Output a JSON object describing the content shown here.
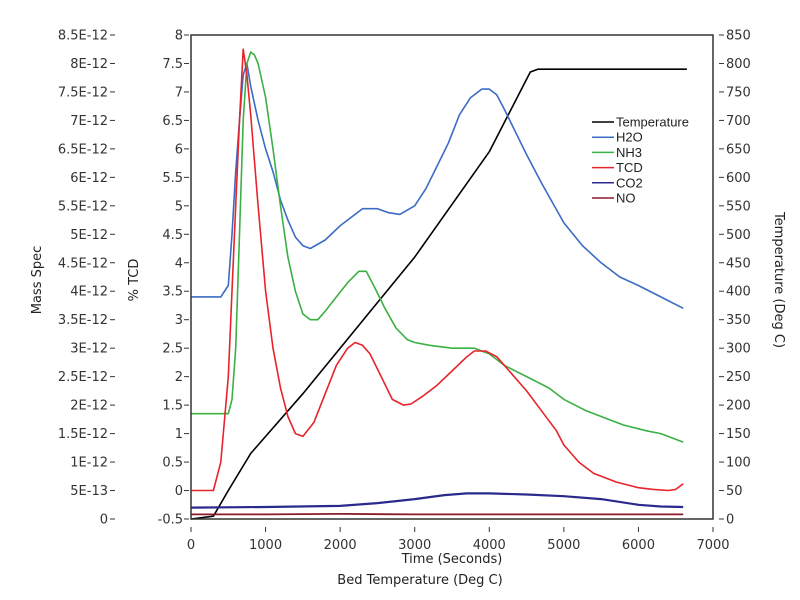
{
  "chart_data": {
    "type": "line",
    "xlabel": "Time (Seconds)",
    "xlabel2": "Bed Temperature (Deg C)",
    "ylabel_left_outer": "Mass Spec",
    "ylabel_left_inner": "% TCD",
    "ylabel_right": "Temperature (Deg C)",
    "xlim": [
      0,
      7000
    ],
    "ylim_tcd": [
      -0.5,
      8
    ],
    "ylim_temp": [
      0,
      850
    ],
    "x_ticks": [
      "0",
      "1000",
      "2000",
      "3000",
      "4000",
      "5000",
      "6000",
      "7000"
    ],
    "mass_spec_ticks": [
      "0",
      "5E-13",
      "1E-12",
      "1.5E-12",
      "2E-12",
      "2.5E-12",
      "3E-12",
      "3.5E-12",
      "4E-12",
      "4.5E-12",
      "5E-12",
      "5.5E-12",
      "6E-12",
      "6.5E-12",
      "7E-12",
      "7.5E-12",
      "8E-12",
      "8.5E-12"
    ],
    "tcd_ticks": [
      "-0.5",
      "0",
      "0.5",
      "1",
      "1.5",
      "2",
      "2.5",
      "3",
      "3.5",
      "4",
      "4.5",
      "5",
      "5.5",
      "6",
      "6.5",
      "7",
      "7.5",
      "8"
    ],
    "temp_ticks": [
      "0",
      "50",
      "100",
      "150",
      "200",
      "250",
      "300",
      "350",
      "400",
      "450",
      "500",
      "550",
      "600",
      "650",
      "700",
      "750",
      "800",
      "850"
    ],
    "legend_position": "upper-right",
    "series": [
      {
        "name": "Temperature",
        "color": "#000000",
        "axis": "right",
        "x": [
          0,
          300,
          500,
          800,
          1500,
          2000,
          3000,
          4000,
          4550,
          4650,
          6650
        ],
        "y": [
          0,
          5,
          50,
          115,
          220,
          300,
          460,
          645,
          785,
          790,
          790
        ]
      },
      {
        "name": "H2O",
        "color": "#3b6cc4",
        "axis": "left",
        "x": [
          0,
          400,
          500,
          550,
          600,
          650,
          700,
          750,
          800,
          900,
          1000,
          1100,
          1200,
          1300,
          1400,
          1500,
          1600,
          1800,
          2000,
          2150,
          2300,
          2500,
          2650,
          2800,
          3000,
          3150,
          3300,
          3450,
          3600,
          3750,
          3900,
          4000,
          4100,
          4200,
          4350,
          4500,
          4700,
          5000,
          5250,
          5500,
          5750,
          6000,
          6300,
          6600
        ],
        "y": [
          3.4,
          3.4,
          3.6,
          4.5,
          5.6,
          6.5,
          7.3,
          7.5,
          7.1,
          6.5,
          6.0,
          5.6,
          5.1,
          4.75,
          4.45,
          4.3,
          4.25,
          4.4,
          4.65,
          4.8,
          4.95,
          4.95,
          4.88,
          4.85,
          5.0,
          5.3,
          5.7,
          6.1,
          6.6,
          6.9,
          7.05,
          7.05,
          6.95,
          6.7,
          6.3,
          5.9,
          5.4,
          4.7,
          4.3,
          4.0,
          3.75,
          3.6,
          3.4,
          3.2
        ]
      },
      {
        "name": "NH3",
        "color": "#3cb043",
        "axis": "left",
        "x": [
          0,
          500,
          550,
          600,
          650,
          700,
          750,
          800,
          850,
          900,
          1000,
          1100,
          1200,
          1300,
          1400,
          1500,
          1600,
          1700,
          1800,
          1950,
          2100,
          2250,
          2350,
          2450,
          2600,
          2750,
          2900,
          3000,
          3200,
          3500,
          3800,
          4000,
          4200,
          4500,
          4800,
          5000,
          5300,
          5600,
          5800,
          6100,
          6300,
          6600
        ],
        "y": [
          1.35,
          1.35,
          1.6,
          2.5,
          4.5,
          6.5,
          7.5,
          7.7,
          7.65,
          7.5,
          6.9,
          6.0,
          5.0,
          4.1,
          3.5,
          3.1,
          3.0,
          3.0,
          3.15,
          3.4,
          3.65,
          3.85,
          3.85,
          3.6,
          3.2,
          2.85,
          2.65,
          2.6,
          2.55,
          2.5,
          2.5,
          2.4,
          2.2,
          2.0,
          1.8,
          1.6,
          1.4,
          1.25,
          1.15,
          1.05,
          1.0,
          0.85
        ]
      },
      {
        "name": "TCD",
        "color": "#e8232a",
        "axis": "left",
        "x": [
          0,
          300,
          400,
          500,
          550,
          600,
          650,
          700,
          750,
          800,
          900,
          1000,
          1100,
          1200,
          1300,
          1400,
          1500,
          1650,
          1800,
          1950,
          2100,
          2200,
          2300,
          2400,
          2550,
          2700,
          2850,
          2950,
          3100,
          3300,
          3500,
          3700,
          3800,
          3950,
          4100,
          4300,
          4500,
          4700,
          4900,
          5000,
          5200,
          5400,
          5700,
          6000,
          6200,
          6400,
          6500,
          6600
        ],
        "y": [
          0,
          0,
          0.5,
          2.0,
          3.5,
          5.0,
          6.5,
          7.75,
          7.3,
          6.6,
          5.0,
          3.5,
          2.5,
          1.8,
          1.3,
          1.0,
          0.95,
          1.2,
          1.7,
          2.2,
          2.5,
          2.6,
          2.55,
          2.4,
          2.0,
          1.6,
          1.5,
          1.52,
          1.65,
          1.85,
          2.1,
          2.35,
          2.45,
          2.45,
          2.35,
          2.05,
          1.75,
          1.4,
          1.05,
          0.8,
          0.5,
          0.3,
          0.15,
          0.05,
          0.02,
          0.0,
          0.02,
          0.12
        ]
      },
      {
        "name": "CO2",
        "color": "#2a2a8c",
        "axis": "left",
        "x": [
          0,
          1000,
          2000,
          2500,
          3000,
          3400,
          3700,
          4000,
          4500,
          5000,
          5500,
          6000,
          6300,
          6600
        ],
        "y": [
          -0.3,
          -0.29,
          -0.27,
          -0.22,
          -0.15,
          -0.08,
          -0.05,
          -0.05,
          -0.07,
          -0.1,
          -0.15,
          -0.25,
          -0.28,
          -0.29
        ]
      },
      {
        "name": "NO",
        "color": "#8b1a2b",
        "axis": "left",
        "x": [
          0,
          1000,
          2000,
          3000,
          4000,
          5000,
          6000,
          6600
        ],
        "y": [
          -0.42,
          -0.42,
          -0.41,
          -0.42,
          -0.42,
          -0.42,
          -0.42,
          -0.42
        ]
      }
    ]
  }
}
